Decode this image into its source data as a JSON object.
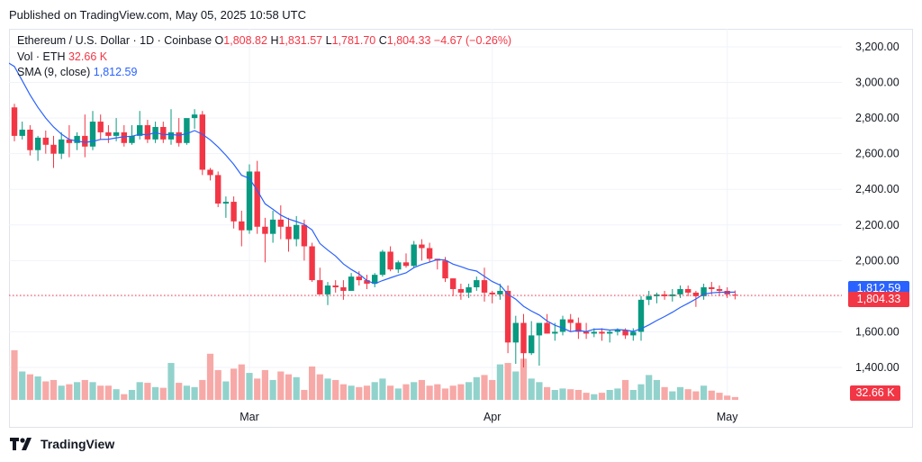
{
  "header": {
    "published": "Published on TradingView.com, May 05, 2025 10:58 UTC"
  },
  "legend": {
    "symbol": "Ethereum / U.S. Dollar · 1D · Coinbase",
    "o_label": "O",
    "o": "1,808.82",
    "h_label": "H",
    "h": "1,831.57",
    "l_label": "L",
    "l": "1,781.70",
    "c_label": "C",
    "c": "1,804.33",
    "change": "−4.67 (−0.26%)",
    "vol_label": "Vol · ETH",
    "vol": "32.66 K",
    "sma_label": "SMA (9, close)",
    "sma": "1,812.59"
  },
  "footer": {
    "brand": "TradingView"
  },
  "tags": {
    "sma": "1,812.59",
    "last": "1,804.33",
    "vol": "32.66 K"
  },
  "colors": {
    "up": "#089981",
    "down": "#f23645",
    "up_vol": "#92d2cc",
    "down_vol": "#f7a9a7",
    "sma": "#2962ff",
    "grid": "#f0f3fa"
  },
  "chart_data": {
    "type": "candlestick",
    "title": "Ethereum / U.S. Dollar · 1D · Coinbase",
    "y_ticks": [
      1400,
      1600,
      1800,
      2000,
      2200,
      2400,
      2600,
      2800,
      3000,
      3200
    ],
    "y_tick_labels": [
      "1,400.00",
      "1,600.00",
      "1,800.00",
      "2,000.00",
      "2,200.00",
      "2,400.00",
      "2,600.00",
      "2,800.00",
      "3,000.00",
      "3,200.00"
    ],
    "ylim": [
      1280,
      3290
    ],
    "x_labels": [
      {
        "label": "Mar",
        "index": 30
      },
      {
        "label": "Apr",
        "index": 61
      },
      {
        "label": "May",
        "index": 91
      }
    ],
    "last_price": 1804.33,
    "sma_last": 1812.59,
    "volume_max": 132,
    "sma_start": [
      3090,
      3010,
      2930,
      2860,
      2800,
      2750,
      2710,
      2680
    ],
    "candles": [
      [
        2860,
        2880,
        2670,
        2700,
        70
      ],
      [
        2700,
        2780,
        2680,
        2735,
        40
      ],
      [
        2735,
        2760,
        2590,
        2620,
        36
      ],
      [
        2620,
        2700,
        2560,
        2690,
        33
      ],
      [
        2690,
        2730,
        2600,
        2650,
        26
      ],
      [
        2650,
        2700,
        2520,
        2600,
        28
      ],
      [
        2600,
        2720,
        2570,
        2680,
        20
      ],
      [
        2680,
        2760,
        2580,
        2660,
        22
      ],
      [
        2660,
        2720,
        2620,
        2700,
        25
      ],
      [
        2700,
        2820,
        2580,
        2640,
        28
      ],
      [
        2640,
        2840,
        2620,
        2780,
        25
      ],
      [
        2780,
        2820,
        2680,
        2720,
        20
      ],
      [
        2720,
        2760,
        2660,
        2700,
        20
      ],
      [
        2700,
        2800,
        2670,
        2720,
        15
      ],
      [
        2720,
        2760,
        2640,
        2660,
        8
      ],
      [
        2660,
        2760,
        2650,
        2700,
        14
      ],
      [
        2700,
        2840,
        2680,
        2760,
        25
      ],
      [
        2760,
        2790,
        2660,
        2680,
        24
      ],
      [
        2680,
        2780,
        2660,
        2750,
        18
      ],
      [
        2750,
        2780,
        2660,
        2680,
        17
      ],
      [
        2680,
        2850,
        2650,
        2720,
        52
      ],
      [
        2720,
        2800,
        2640,
        2660,
        24
      ],
      [
        2660,
        2780,
        2650,
        2800,
        20
      ],
      [
        2800,
        2850,
        2740,
        2820,
        18
      ],
      [
        2820,
        2840,
        2480,
        2510,
        28
      ],
      [
        2510,
        2520,
        2450,
        2480,
        65
      ],
      [
        2480,
        2500,
        2300,
        2320,
        42
      ],
      [
        2320,
        2360,
        2240,
        2330,
        26
      ],
      [
        2330,
        2360,
        2180,
        2220,
        44
      ],
      [
        2220,
        2280,
        2080,
        2170,
        50
      ],
      [
        2170,
        2540,
        2150,
        2500,
        38
      ],
      [
        2500,
        2560,
        2150,
        2190,
        30
      ],
      [
        2190,
        2240,
        1990,
        2150,
        42
      ],
      [
        2150,
        2280,
        2100,
        2230,
        28
      ],
      [
        2230,
        2310,
        2120,
        2190,
        40
      ],
      [
        2190,
        2240,
        2050,
        2120,
        36
      ],
      [
        2120,
        2250,
        2080,
        2200,
        32
      ],
      [
        2200,
        2230,
        2000,
        2080,
        14
      ],
      [
        2080,
        2100,
        1880,
        1890,
        47
      ],
      [
        1890,
        1960,
        1820,
        1810,
        36
      ],
      [
        1810,
        1880,
        1750,
        1860,
        30
      ],
      [
        1860,
        1890,
        1820,
        1850,
        28
      ],
      [
        1850,
        1890,
        1780,
        1830,
        22
      ],
      [
        1830,
        1930,
        1830,
        1910,
        20
      ],
      [
        1910,
        1940,
        1860,
        1890,
        18
      ],
      [
        1890,
        1920,
        1840,
        1870,
        20
      ],
      [
        1870,
        1930,
        1850,
        1920,
        25
      ],
      [
        1920,
        2060,
        1910,
        2050,
        30
      ],
      [
        2050,
        2080,
        1940,
        1950,
        20
      ],
      [
        1950,
        2000,
        1930,
        1990,
        16
      ],
      [
        1990,
        2040,
        1960,
        1970,
        22
      ],
      [
        1970,
        2110,
        1960,
        2090,
        25
      ],
      [
        2090,
        2120,
        2000,
        2070,
        28
      ],
      [
        2070,
        2100,
        1990,
        2010,
        20
      ],
      [
        2010,
        2010,
        1950,
        2000,
        22
      ],
      [
        2000,
        2020,
        1880,
        1900,
        16
      ],
      [
        1900,
        1900,
        1800,
        1840,
        20
      ],
      [
        1840,
        1870,
        1780,
        1820,
        22
      ],
      [
        1820,
        1870,
        1790,
        1850,
        25
      ],
      [
        1850,
        1910,
        1830,
        1890,
        32
      ],
      [
        1890,
        1960,
        1770,
        1820,
        35
      ],
      [
        1820,
        1830,
        1760,
        1810,
        28
      ],
      [
        1810,
        1870,
        1780,
        1830,
        50
      ],
      [
        1830,
        1860,
        1480,
        1540,
        52
      ],
      [
        1540,
        1690,
        1420,
        1650,
        40
      ],
      [
        1650,
        1700,
        1400,
        1480,
        58
      ],
      [
        1480,
        1660,
        1470,
        1580,
        30
      ],
      [
        1580,
        1650,
        1410,
        1650,
        25
      ],
      [
        1650,
        1700,
        1590,
        1590,
        18
      ],
      [
        1590,
        1650,
        1550,
        1600,
        14
      ],
      [
        1600,
        1690,
        1580,
        1670,
        16
      ],
      [
        1670,
        1700,
        1600,
        1650,
        15
      ],
      [
        1650,
        1680,
        1560,
        1600,
        14
      ],
      [
        1600,
        1650,
        1560,
        1590,
        10
      ],
      [
        1590,
        1620,
        1570,
        1600,
        8
      ],
      [
        1600,
        1620,
        1550,
        1590,
        10
      ],
      [
        1590,
        1610,
        1540,
        1600,
        14
      ],
      [
        1600,
        1620,
        1580,
        1610,
        16
      ],
      [
        1610,
        1620,
        1560,
        1580,
        28
      ],
      [
        1580,
        1620,
        1550,
        1600,
        14
      ],
      [
        1600,
        1800,
        1550,
        1780,
        22
      ],
      [
        1780,
        1830,
        1750,
        1800,
        35
      ],
      [
        1800,
        1820,
        1760,
        1810,
        28
      ],
      [
        1810,
        1830,
        1780,
        1800,
        18
      ],
      [
        1800,
        1840,
        1770,
        1810,
        12
      ],
      [
        1810,
        1860,
        1790,
        1840,
        18
      ],
      [
        1840,
        1860,
        1800,
        1820,
        15
      ],
      [
        1820,
        1830,
        1740,
        1800,
        12
      ],
      [
        1800,
        1870,
        1780,
        1850,
        20
      ],
      [
        1850,
        1880,
        1810,
        1840,
        13
      ],
      [
        1840,
        1860,
        1800,
        1830,
        10
      ],
      [
        1830,
        1850,
        1790,
        1810,
        6
      ],
      [
        1809,
        1832,
        1782,
        1804,
        4
      ]
    ]
  }
}
